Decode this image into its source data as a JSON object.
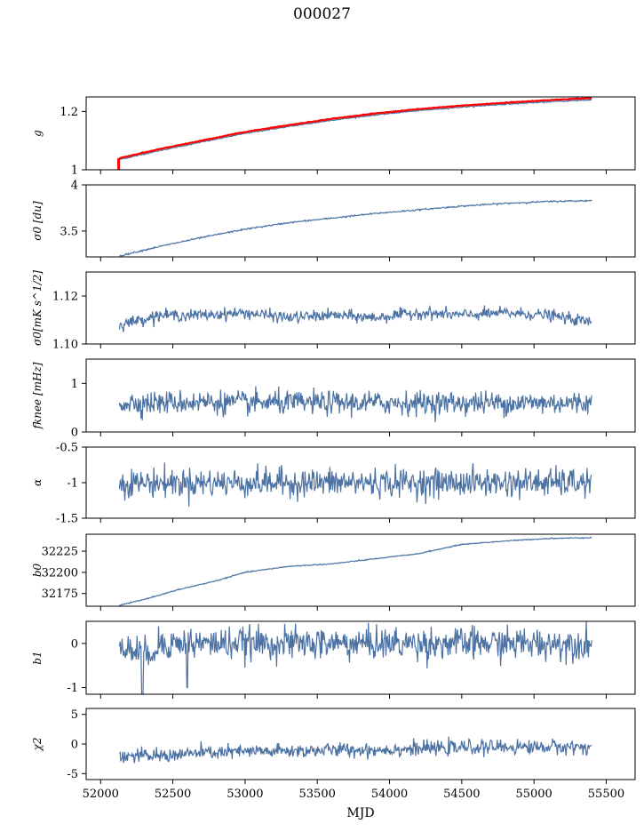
{
  "figure": {
    "title": "000027",
    "xlabel": "MJD",
    "series_color": "#4c72a4",
    "reference_color": "#ff0000"
  },
  "chart_data": [
    {
      "type": "line",
      "ylabel": "g",
      "ylim": [
        1.0,
        1.25
      ],
      "yticks": [
        1.0,
        1.2
      ],
      "x": [
        52130,
        52400,
        52700,
        53000,
        53300,
        53600,
        53900,
        54200,
        54500,
        54800,
        55100,
        55400
      ],
      "series": [
        {
          "values": [
            1.035,
            1.065,
            1.095,
            1.125,
            1.148,
            1.17,
            1.188,
            1.203,
            1.215,
            1.225,
            1.233,
            1.24
          ]
        },
        {
          "values": [
            1.04,
            1.07,
            1.1,
            1.13,
            1.153,
            1.175,
            1.193,
            1.208,
            1.22,
            1.23,
            1.239,
            1.246
          ]
        }
      ],
      "grid": false
    },
    {
      "type": "line",
      "ylabel": "σ0 [du]",
      "ylim": [
        3.22,
        4.0
      ],
      "yticks": [
        3.5,
        4.0
      ],
      "x": [
        52130,
        52400,
        52700,
        53000,
        53300,
        53600,
        53900,
        54200,
        54500,
        54800,
        55100,
        55400
      ],
      "values": [
        3.23,
        3.33,
        3.43,
        3.52,
        3.59,
        3.64,
        3.69,
        3.73,
        3.77,
        3.8,
        3.82,
        3.83
      ]
    },
    {
      "type": "line",
      "ylabel": "σ0[mK s^1/2]",
      "ylim": [
        1.1,
        1.13
      ],
      "yticks": [
        1.1,
        1.12
      ],
      "x": [
        52130,
        52400,
        52700,
        53000,
        53300,
        53600,
        53900,
        54200,
        54500,
        54800,
        55100,
        55400
      ],
      "values": [
        1.108,
        1.112,
        1.112,
        1.113,
        1.111,
        1.112,
        1.111,
        1.113,
        1.112,
        1.113,
        1.112,
        1.109
      ]
    },
    {
      "type": "line",
      "ylabel": "fknee [mHz]",
      "ylim": [
        0,
        1.5
      ],
      "yticks": [
        0,
        1
      ],
      "x": [
        52130,
        52400,
        52700,
        53000,
        53300,
        53600,
        53900,
        54200,
        54500,
        54800,
        55100,
        55400
      ],
      "values": [
        0.6,
        0.6,
        0.62,
        0.6,
        0.6,
        0.6,
        0.6,
        0.6,
        0.6,
        0.6,
        0.6,
        0.6
      ]
    },
    {
      "type": "line",
      "ylabel": "α",
      "ylim": [
        -1.5,
        -0.5
      ],
      "yticks": [
        -1.5,
        -1.0,
        -0.5
      ],
      "x": [
        52130,
        52400,
        52700,
        53000,
        53300,
        53600,
        53900,
        54200,
        54500,
        54800,
        55100,
        55400
      ],
      "values": [
        -1.0,
        -1.0,
        -1.0,
        -1.0,
        -1.0,
        -1.0,
        -1.0,
        -1.0,
        -1.0,
        -1.0,
        -1.0,
        -1.0
      ]
    },
    {
      "type": "line",
      "ylabel": "b0",
      "ylim": [
        32160,
        32245
      ],
      "yticks": [
        32175,
        32200,
        32225
      ],
      "x": [
        52130,
        52300,
        52550,
        52800,
        53000,
        53300,
        53600,
        53900,
        54200,
        54500,
        54800,
        55100,
        55400
      ],
      "values": [
        32161,
        32168,
        32180,
        32190,
        32200,
        32207,
        32210,
        32216,
        32222,
        32233,
        32237,
        32240,
        32241
      ]
    },
    {
      "type": "line",
      "ylabel": "b1",
      "ylim": [
        -1.15,
        0.5
      ],
      "yticks": [
        -1,
        0
      ],
      "x": [
        52130,
        52290,
        52600,
        52900,
        53300,
        53700,
        54100,
        54500,
        54900,
        55400
      ],
      "values": [
        0.0,
        -1.1,
        -1.0,
        -0.05,
        0.0,
        0.0,
        0.0,
        0.05,
        0.05,
        0.05
      ],
      "annotations": []
    },
    {
      "type": "line",
      "ylabel": "χ2",
      "ylim": [
        -6,
        6
      ],
      "yticks": [
        -5,
        0,
        5
      ],
      "xlim": [
        51900,
        55700
      ],
      "xticks": [
        52000,
        52500,
        53000,
        53500,
        54000,
        54500,
        55000,
        55500
      ],
      "x": [
        52130,
        52400,
        52700,
        53000,
        53300,
        53600,
        53900,
        54200,
        54500,
        54800,
        55100,
        55400
      ],
      "values": [
        -2.0,
        -2.0,
        -1.5,
        -1.3,
        -1.2,
        -1.0,
        -1.0,
        -0.8,
        -0.6,
        -0.5,
        -0.5,
        -0.5
      ]
    }
  ]
}
